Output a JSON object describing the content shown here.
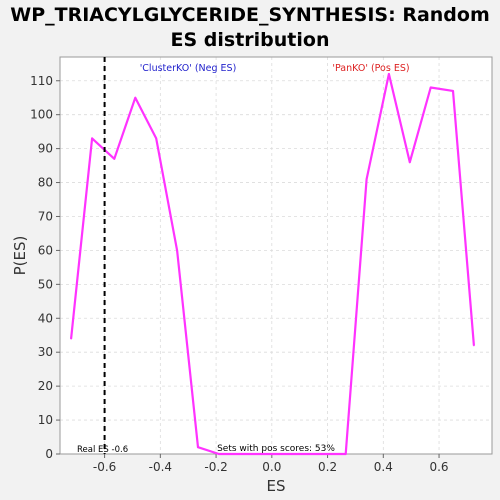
{
  "chart_data": {
    "type": "line",
    "title_lines": [
      "WP_TRIACYLGLYCERIDE_SYNTHESIS: Random",
      "ES distribution"
    ],
    "xlabel": "ES",
    "ylabel": "P(ES)",
    "xlim": [
      -0.76,
      0.79
    ],
    "ylim": [
      0,
      117
    ],
    "xticks": [
      -0.6,
      -0.4,
      -0.2,
      0.0,
      0.2,
      0.4,
      0.6
    ],
    "xtick_labels": [
      "-0.6",
      "-0.4",
      "-0.2",
      "0.0",
      "0.2",
      "0.4",
      "0.6"
    ],
    "yticks": [
      0,
      10,
      20,
      30,
      40,
      50,
      60,
      70,
      80,
      90,
      100,
      110
    ],
    "ytick_labels": [
      "0",
      "10",
      "20",
      "30",
      "40",
      "50",
      "60",
      "70",
      "80",
      "90",
      "100",
      "110"
    ],
    "grid": true,
    "series": [
      {
        "color": "#ff33ff",
        "x": [
          -0.72,
          -0.645,
          -0.565,
          -0.49,
          -0.415,
          -0.34,
          -0.265,
          -0.19,
          -0.115,
          -0.04,
          0.035,
          0.11,
          0.19,
          0.265,
          0.34,
          0.42,
          0.495,
          0.57,
          0.65,
          0.725
        ],
        "y": [
          34,
          93,
          87,
          105,
          93,
          60,
          2,
          0,
          0,
          0,
          0,
          0,
          0,
          0,
          81,
          112,
          86,
          108,
          107,
          32
        ]
      }
    ],
    "real_es": {
      "value": -0.6,
      "label": "Real ES -0.6",
      "color": "#000000"
    },
    "annotations": {
      "neg_label": "'ClusterKO' (Neg ES)",
      "neg_color": "#2222cc",
      "pos_label": "'PanKO' (Pos ES)",
      "pos_color": "#dd2222",
      "pos_scores": "Sets with pos scores: 53%"
    }
  }
}
